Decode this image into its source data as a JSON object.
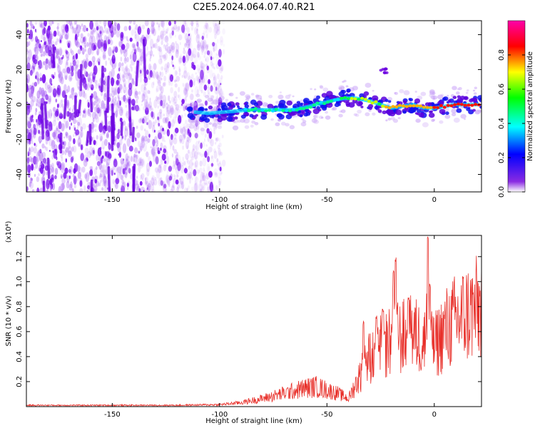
{
  "title": "C2E5.2024.064.07.40.R21",
  "chart_data": [
    {
      "type": "heatmap",
      "xlabel": "Height of straight line (km)",
      "ylabel": "Frequency (Hz)",
      "xlim": [
        -190,
        22
      ],
      "ylim": [
        -50,
        48
      ],
      "x_ticks": [
        -150,
        -100,
        -50,
        0
      ],
      "y_ticks": [
        -40,
        -20,
        0,
        20,
        40
      ],
      "grid": false,
      "colorbar": {
        "label": "Normalized spectral amplitude",
        "range": [
          0.0,
          1.0
        ],
        "ticks": [
          0.0,
          0.2,
          0.4,
          0.6,
          0.8
        ],
        "colormap": [
          "#ffffff",
          "#8a2be2",
          "#0000ff",
          "#00ffff",
          "#00ff00",
          "#ffff00",
          "#ff0000",
          "#ff00ff"
        ]
      },
      "ridge": {
        "x": [
          -115,
          -105,
          -95,
          -85,
          -75,
          -65,
          -55,
          -45,
          -38,
          -30,
          -20,
          -10,
          -5,
          0,
          10,
          22
        ],
        "y": [
          -4,
          -5,
          -4,
          -3,
          -3,
          -3,
          0,
          3,
          4,
          2,
          -2,
          0,
          -2,
          -2,
          0,
          0
        ]
      }
    },
    {
      "type": "line",
      "xlabel": "Height of straight line (km)",
      "ylabel": "SNR (10 * v/v)",
      "yunit_note": "(x10⁴)",
      "xlim": [
        -190,
        22
      ],
      "ylim": [
        0,
        1.37
      ],
      "x_ticks": [
        -150,
        -100,
        -50,
        0
      ],
      "y_ticks": [
        0.2,
        0.4,
        0.6,
        0.8,
        1.0,
        1.2
      ],
      "grid": false,
      "line_color": "#e8302a",
      "envelope": {
        "x": [
          -190,
          -120,
          -100,
          -90,
          -80,
          -70,
          -60,
          -55,
          -45,
          -40,
          -35,
          -30,
          -25,
          -20,
          -15,
          -10,
          -5,
          0,
          5,
          10,
          15,
          22
        ],
        "y": [
          0.01,
          0.01,
          0.015,
          0.03,
          0.06,
          0.1,
          0.14,
          0.15,
          0.1,
          0.06,
          0.22,
          0.38,
          0.45,
          0.5,
          0.52,
          0.55,
          0.5,
          0.45,
          0.58,
          0.65,
          0.7,
          0.75
        ]
      },
      "spikes": [
        {
          "x": -33,
          "y": 0.7
        },
        {
          "x": -27,
          "y": 0.75
        },
        {
          "x": -24,
          "y": 0.8
        },
        {
          "x": -19,
          "y": 1.1
        },
        {
          "x": -18,
          "y": 1.2
        },
        {
          "x": -12,
          "y": 0.9
        },
        {
          "x": -3,
          "y": 1.37
        },
        {
          "x": -2,
          "y": 1.0
        }
      ]
    }
  ]
}
